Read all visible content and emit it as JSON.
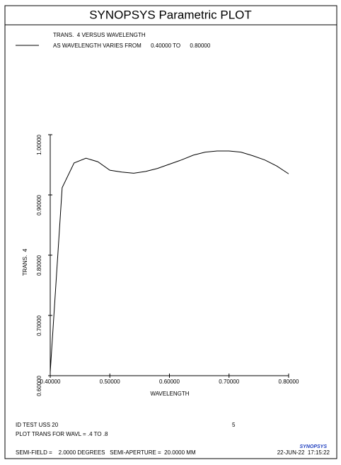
{
  "chart_data": {
    "type": "line",
    "title": "SYNOPSYS Parametric PLOT",
    "subtitle": "AS WAVELENGTH VARIES FROM      0.40000 TO      0.80000",
    "xlabel": "WAVELENGTH",
    "ylabel": "TRANS.  4",
    "x": [
      0.4,
      0.42,
      0.44,
      0.46,
      0.48,
      0.5,
      0.52,
      0.54,
      0.56,
      0.58,
      0.6,
      0.62,
      0.64,
      0.66,
      0.68,
      0.7,
      0.72,
      0.74,
      0.76,
      0.78,
      0.8
    ],
    "series": [
      {
        "name": "TRANS.  4 VERSUS WAVELENGTH",
        "color": "#000000",
        "values": [
          0.606,
          0.912,
          0.953,
          0.961,
          0.955,
          0.941,
          0.938,
          0.936,
          0.939,
          0.944,
          0.951,
          0.958,
          0.966,
          0.971,
          0.973,
          0.973,
          0.971,
          0.965,
          0.958,
          0.948,
          0.935
        ]
      }
    ],
    "xlim": [
      0.4,
      0.8
    ],
    "ylim": [
      0.6,
      1.0
    ],
    "xticks": [
      {
        "value": 0.4,
        "label": "0.40000"
      },
      {
        "value": 0.5,
        "label": "0.50000"
      },
      {
        "value": 0.6,
        "label": "0.60000"
      },
      {
        "value": 0.7,
        "label": "0.70000"
      },
      {
        "value": 0.8,
        "label": "0.80000"
      }
    ],
    "yticks": [
      {
        "value": 0.6,
        "label": "0.60000"
      },
      {
        "value": 0.7,
        "label": "0.70000"
      },
      {
        "value": 0.8,
        "label": "0.80000"
      },
      {
        "value": 0.9,
        "label": "0.90000"
      },
      {
        "value": 1.0,
        "label": "1.00000"
      }
    ]
  },
  "footer": {
    "id": "ID TEST USS 20",
    "number": "5",
    "plot": "PLOT TRANS FOR WAVL = .4 TO .8",
    "semi": "SEMI-FIELD =    2.0000 DEGREES   SEMI-APERTURE =  20.0000 MM",
    "date": "22-JUN-22  17:15:22",
    "logo": "SYNOPSYS"
  }
}
